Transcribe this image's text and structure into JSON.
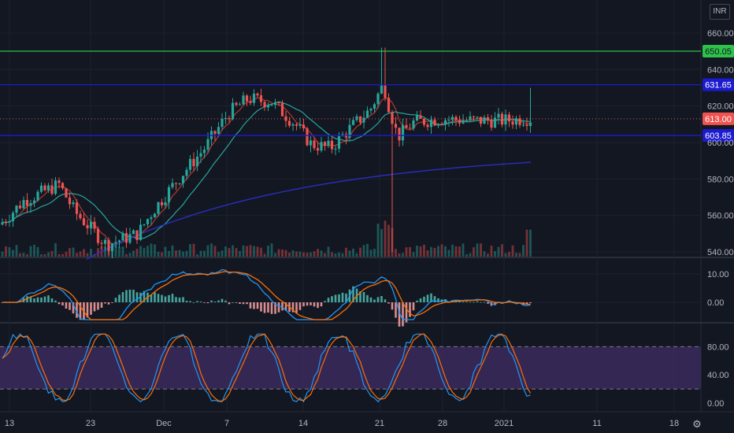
{
  "currency": "INR",
  "price_axis_ticks": [
    "660.00",
    "640.00",
    "620.00",
    "600.00",
    "580.00",
    "560.00",
    "540.00"
  ],
  "macd_axis_ticks": [
    "10.00",
    "0.00"
  ],
  "stoch_axis_ticks": [
    "80.00",
    "40.00",
    "0.00"
  ],
  "time_axis_ticks": [
    "13",
    "23",
    "Dec",
    "7",
    "14",
    "21",
    "28",
    "2021",
    "11",
    "18"
  ],
  "horizontal_lines": [
    {
      "label": "650.05",
      "price": 650.05,
      "color": "#2ec24a",
      "text_color": "#131722"
    },
    {
      "label": "631.65",
      "price": 631.65,
      "color": "#1b1bd0",
      "text_color": "#ffffff"
    },
    {
      "label": "603.85",
      "price": 603.85,
      "color": "#1b1bd0",
      "text_color": "#ffffff"
    }
  ],
  "last_price": {
    "label": "613.00",
    "price": 613.0,
    "color": "#ef5350",
    "text_color": "#ffffff"
  },
  "colors": {
    "up": "#26a69a",
    "down": "#ef5350",
    "ma_short": "#b33a2e",
    "ma_mid": "#26a69a",
    "ma_long": "#2a2ec0",
    "macd_line": "#2196f3",
    "signal_line": "#ff6d00",
    "stoch_fill": "#3b2a5c"
  },
  "stoch_bands": [
    80,
    20
  ]
}
